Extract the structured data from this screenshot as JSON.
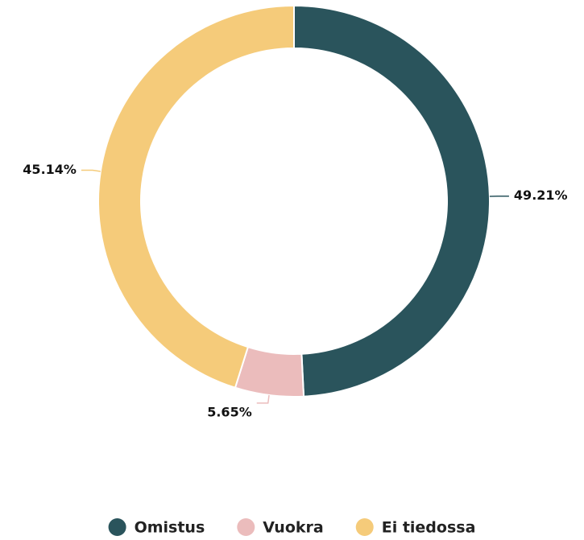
{
  "chart_data": {
    "type": "donut",
    "categories": [
      "Omistus",
      "Vuokra",
      "Ei tiedossa"
    ],
    "values": [
      49.21,
      5.65,
      45.14
    ],
    "value_labels": [
      "49.21%",
      "5.65%",
      "45.14%"
    ],
    "colors": [
      "#2a545c",
      "#ebbcbc",
      "#f5cb7a"
    ],
    "legend": "bottom"
  }
}
